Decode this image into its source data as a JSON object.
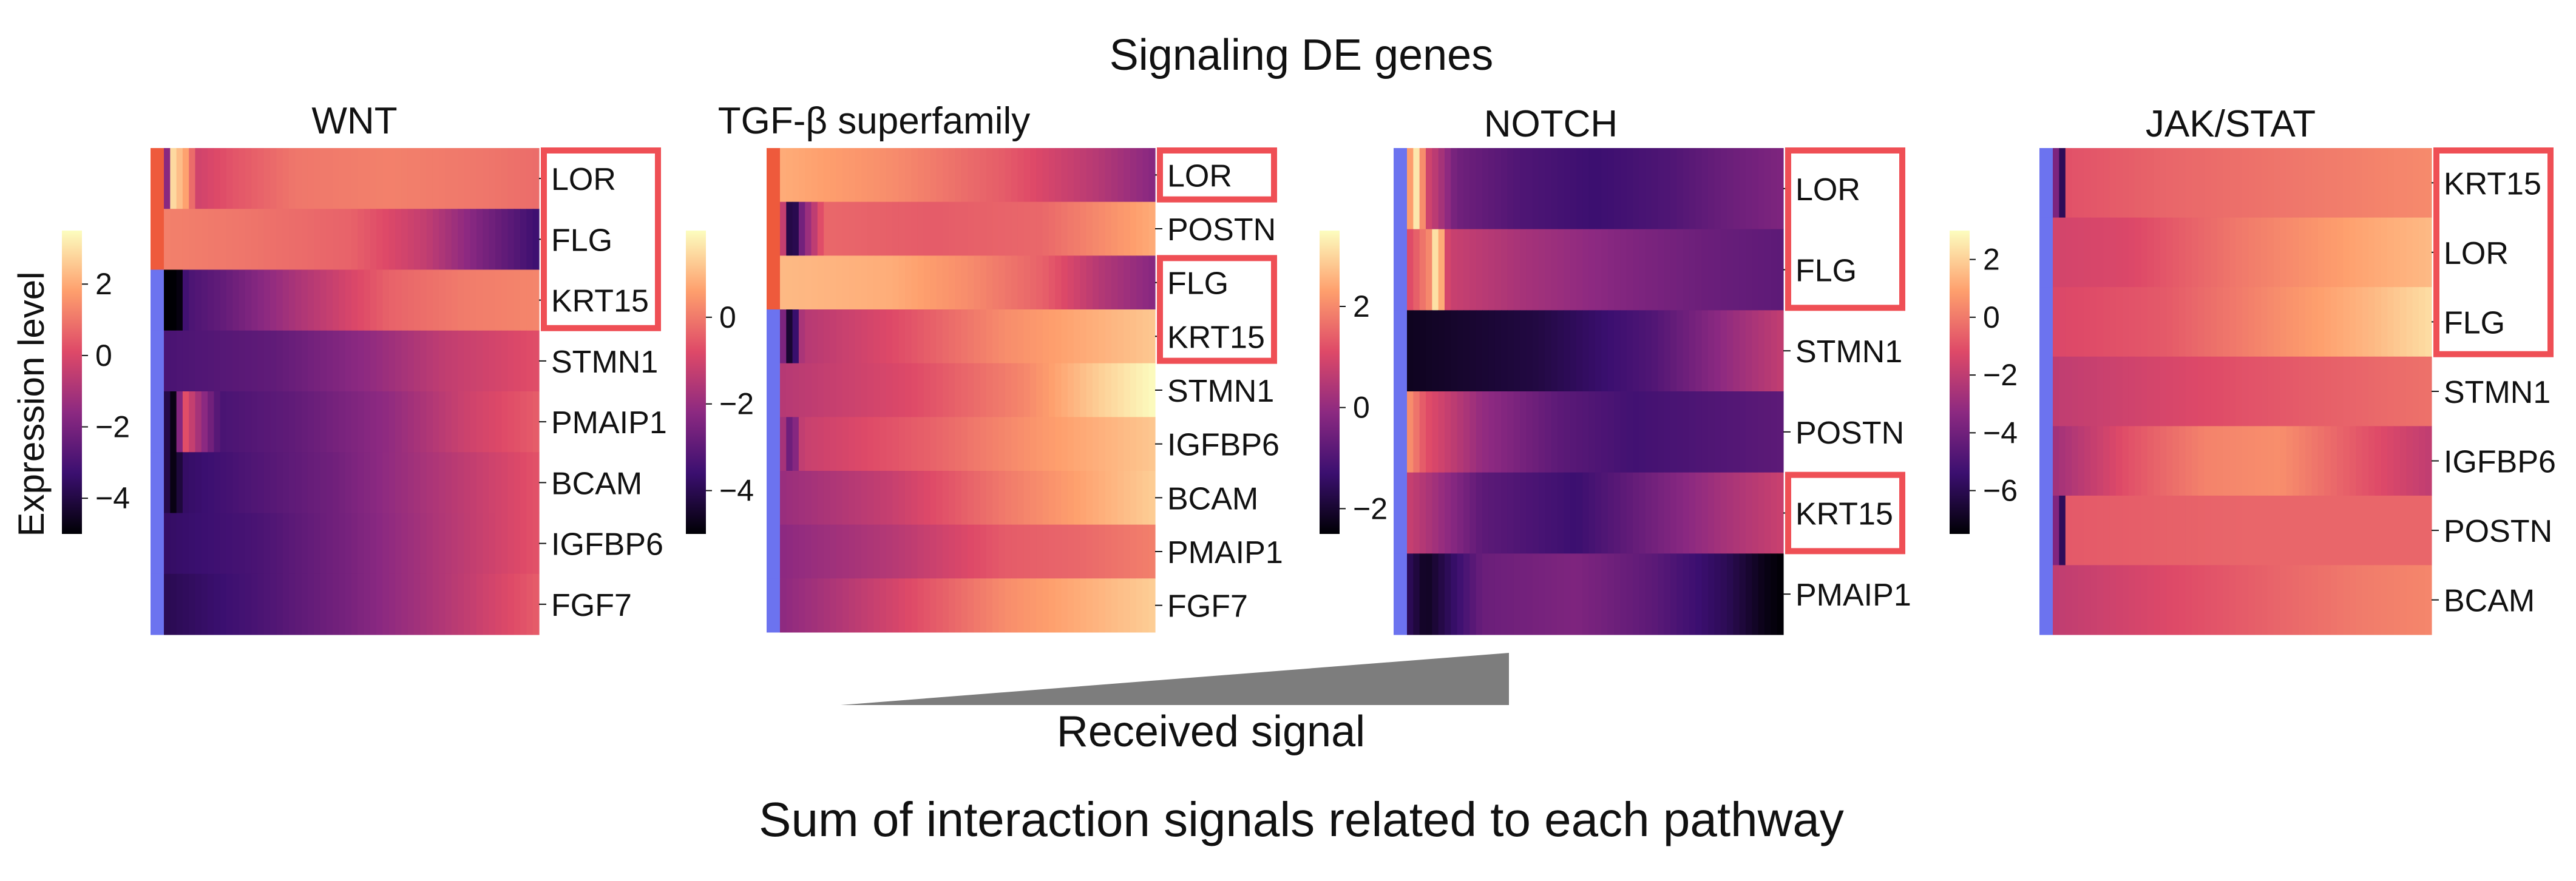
{
  "title": "Signaling DE genes",
  "arrow_label": "Received signal",
  "footer": "Sum of interaction signals related to each pathway",
  "expression_label": "Expression level",
  "palette": [
    "#000004",
    "#3b0f70",
    "#8c2981",
    "#de4968",
    "#fe9f6d",
    "#fcfdbf"
  ],
  "highlight_color": "#ef4f55",
  "cluster_colors": {
    "red": "#ee5a3c",
    "blue": "#6c73ef"
  },
  "arrow_color": "#7d7d7d",
  "chart_data": [
    {
      "type": "heatmap",
      "title": "WNT",
      "genes": [
        "LOR",
        "FLG",
        "KRT15",
        "STMN1",
        "PMAIP1",
        "BCAM",
        "IGFBP6",
        "FGF7"
      ],
      "highlighted": [
        "LOR",
        "FLG",
        "KRT15"
      ],
      "highlight_groups": [
        [
          0,
          2
        ]
      ],
      "row_cluster": [
        "red",
        "red",
        "blue",
        "blue",
        "blue",
        "blue",
        "blue",
        "blue"
      ],
      "colorbar": {
        "range": [
          -5,
          3.5
        ],
        "ticks": [
          2,
          0,
          -2,
          -4
        ],
        "tick_labels": [
          "2",
          "0",
          "−2",
          "−4"
        ]
      },
      "x_label": "Received signal (low → high)",
      "rows": [
        {
          "gene": "LOR",
          "anchors": [
            [
              0,
              -5
            ],
            [
              0.02,
              3.0
            ],
            [
              0.06,
              1.8
            ],
            [
              0.09,
              -0.2
            ],
            [
              0.18,
              0.3
            ],
            [
              0.35,
              1.0
            ],
            [
              0.6,
              1.2
            ],
            [
              0.85,
              1.0
            ],
            [
              1,
              0.8
            ]
          ]
        },
        {
          "gene": "FLG",
          "anchors": [
            [
              0,
              1.2
            ],
            [
              0.2,
              1.0
            ],
            [
              0.5,
              0.6
            ],
            [
              0.7,
              -0.5
            ],
            [
              0.85,
              -2.0
            ],
            [
              1,
              -3.3
            ]
          ]
        },
        {
          "gene": "KRT15",
          "anchors": [
            [
              0,
              -5
            ],
            [
              0.04,
              -5
            ],
            [
              0.06,
              -3.0
            ],
            [
              0.15,
              -2.5
            ],
            [
              0.35,
              -1.0
            ],
            [
              0.6,
              0.6
            ],
            [
              0.8,
              1.1
            ],
            [
              1,
              1.3
            ]
          ]
        },
        {
          "gene": "STMN1",
          "anchors": [
            [
              0,
              -3.0
            ],
            [
              0.3,
              -2.5
            ],
            [
              0.55,
              -1.5
            ],
            [
              0.75,
              -0.5
            ],
            [
              1,
              0.2
            ]
          ]
        },
        {
          "gene": "PMAIP1",
          "anchors": [
            [
              0,
              -3.5
            ],
            [
              0.03,
              -5
            ],
            [
              0.05,
              0.5
            ],
            [
              0.09,
              -1.0
            ],
            [
              0.15,
              -3.0
            ],
            [
              0.35,
              -2.5
            ],
            [
              0.6,
              -1.5
            ],
            [
              0.8,
              -0.3
            ],
            [
              1,
              0.5
            ]
          ]
        },
        {
          "gene": "BCAM",
          "anchors": [
            [
              0,
              -3.5
            ],
            [
              0.03,
              -5
            ],
            [
              0.05,
              -3.5
            ],
            [
              0.2,
              -3.0
            ],
            [
              0.45,
              -2.2
            ],
            [
              0.7,
              -1.0
            ],
            [
              1,
              0.3
            ]
          ]
        },
        {
          "gene": "IGFBP6",
          "anchors": [
            [
              0,
              -3.5
            ],
            [
              0.25,
              -3.0
            ],
            [
              0.5,
              -2.0
            ],
            [
              0.75,
              -0.8
            ],
            [
              1,
              0.3
            ]
          ]
        },
        {
          "gene": "FGF7",
          "anchors": [
            [
              0,
              -3.8
            ],
            [
              0.25,
              -3.0
            ],
            [
              0.5,
              -2.0
            ],
            [
              0.75,
              -0.8
            ],
            [
              1,
              0.5
            ]
          ]
        }
      ]
    },
    {
      "type": "heatmap",
      "title": "TGF-β superfamily",
      "genes": [
        "LOR",
        "POSTN",
        "FLG",
        "KRT15",
        "STMN1",
        "IGFBP6",
        "BCAM",
        "PMAIP1",
        "FGF7"
      ],
      "highlighted": [
        "LOR",
        "FLG",
        "KRT15"
      ],
      "highlight_groups": [
        [
          0,
          0
        ],
        [
          2,
          3
        ]
      ],
      "row_cluster": [
        "red",
        "red",
        "red",
        "blue",
        "blue",
        "blue",
        "blue",
        "blue",
        "blue"
      ],
      "colorbar": {
        "range": [
          -5,
          2
        ],
        "ticks": [
          0,
          -2,
          -4
        ],
        "tick_labels": [
          "0",
          "−2",
          "−4"
        ]
      },
      "x_label": "Received signal (low → high)",
      "rows": [
        {
          "gene": "LOR",
          "anchors": [
            [
              0,
              0.8
            ],
            [
              0.3,
              0.3
            ],
            [
              0.6,
              -0.5
            ],
            [
              0.85,
              -1.5
            ],
            [
              1,
              -2.3
            ]
          ]
        },
        {
          "gene": "POSTN",
          "anchors": [
            [
              0,
              0.2
            ],
            [
              0.03,
              -5
            ],
            [
              0.06,
              -2.5
            ],
            [
              0.12,
              -0.3
            ],
            [
              0.4,
              -0.5
            ],
            [
              0.7,
              -0.3
            ],
            [
              1,
              0.8
            ]
          ]
        },
        {
          "gene": "FLG",
          "anchors": [
            [
              0,
              1.0
            ],
            [
              0.3,
              0.8
            ],
            [
              0.5,
              0.3
            ],
            [
              0.7,
              -0.4
            ],
            [
              0.85,
              -1.5
            ],
            [
              1,
              -2.3
            ]
          ]
        },
        {
          "gene": "KRT15",
          "anchors": [
            [
              0,
              -1.5
            ],
            [
              0.03,
              -5
            ],
            [
              0.06,
              -1.5
            ],
            [
              0.3,
              -0.8
            ],
            [
              0.6,
              0.3
            ],
            [
              1,
              1.2
            ]
          ]
        },
        {
          "gene": "STMN1",
          "anchors": [
            [
              0,
              -1.5
            ],
            [
              0.35,
              -0.8
            ],
            [
              0.65,
              0.2
            ],
            [
              0.85,
              1.3
            ],
            [
              1,
              2.0
            ]
          ]
        },
        {
          "gene": "IGFBP6",
          "anchors": [
            [
              0,
              -1.3
            ],
            [
              0.03,
              -3.0
            ],
            [
              0.06,
              -1.2
            ],
            [
              0.4,
              -0.4
            ],
            [
              0.7,
              0.5
            ],
            [
              1,
              1.2
            ]
          ]
        },
        {
          "gene": "BCAM",
          "anchors": [
            [
              0,
              -2.0
            ],
            [
              0.3,
              -1.2
            ],
            [
              0.6,
              0.0
            ],
            [
              1,
              1.3
            ]
          ]
        },
        {
          "gene": "PMAIP1",
          "anchors": [
            [
              0,
              -2.2
            ],
            [
              0.3,
              -1.5
            ],
            [
              0.6,
              -0.5
            ],
            [
              0.8,
              -0.3
            ],
            [
              1,
              0.1
            ]
          ]
        },
        {
          "gene": "FGF7",
          "anchors": [
            [
              0,
              -2.2
            ],
            [
              0.3,
              -1.0
            ],
            [
              0.6,
              0.3
            ],
            [
              1,
              1.3
            ]
          ]
        }
      ]
    },
    {
      "type": "heatmap",
      "title": "NOTCH",
      "genes": [
        "LOR",
        "FLG",
        "STMN1",
        "POSTN",
        "KRT15",
        "PMAIP1"
      ],
      "highlighted": [
        "LOR",
        "FLG",
        "KRT15"
      ],
      "highlight_groups": [
        [
          0,
          1
        ],
        [
          4,
          4
        ]
      ],
      "row_cluster": [
        "blue",
        "blue",
        "blue",
        "blue",
        "blue",
        "blue"
      ],
      "colorbar": {
        "range": [
          -2.5,
          3.5
        ],
        "ticks": [
          2,
          0,
          -2
        ],
        "tick_labels": [
          "2",
          "0",
          "−2"
        ]
      },
      "x_label": "Received signal (low → high)",
      "rows": [
        {
          "gene": "LOR",
          "anchors": [
            [
              0,
              1.8
            ],
            [
              0.03,
              3.5
            ],
            [
              0.05,
              1.0
            ],
            [
              0.08,
              0.5
            ],
            [
              0.13,
              -0.5
            ],
            [
              0.3,
              -1.0
            ],
            [
              0.5,
              -1.3
            ],
            [
              0.7,
              -1.0
            ],
            [
              0.85,
              -0.6
            ],
            [
              1,
              -0.3
            ]
          ]
        },
        {
          "gene": "FLG",
          "anchors": [
            [
              0,
              1.0
            ],
            [
              0.06,
              2.0
            ],
            [
              0.08,
              3.5
            ],
            [
              0.11,
              0.8
            ],
            [
              0.3,
              0.3
            ],
            [
              0.6,
              -0.3
            ],
            [
              0.8,
              -0.6
            ],
            [
              1,
              -0.8
            ]
          ]
        },
        {
          "gene": "STMN1",
          "anchors": [
            [
              0,
              -2.2
            ],
            [
              0.35,
              -1.8
            ],
            [
              0.65,
              -1.0
            ],
            [
              0.85,
              0.0
            ],
            [
              1,
              0.7
            ]
          ]
        },
        {
          "gene": "POSTN",
          "anchors": [
            [
              0,
              2.2
            ],
            [
              0.05,
              1.2
            ],
            [
              0.2,
              0.0
            ],
            [
              0.4,
              -0.8
            ],
            [
              0.6,
              -1.2
            ],
            [
              0.8,
              -1.0
            ],
            [
              1,
              -0.8
            ]
          ]
        },
        {
          "gene": "KRT15",
          "anchors": [
            [
              0,
              0.8
            ],
            [
              0.2,
              -0.8
            ],
            [
              0.45,
              -1.3
            ],
            [
              0.65,
              -0.5
            ],
            [
              0.85,
              0.3
            ],
            [
              1,
              0.8
            ]
          ]
        },
        {
          "gene": "PMAIP1",
          "anchors": [
            [
              0,
              -1.5
            ],
            [
              0.05,
              -2.2
            ],
            [
              0.2,
              -0.6
            ],
            [
              0.45,
              -0.3
            ],
            [
              0.65,
              -0.8
            ],
            [
              0.85,
              -1.6
            ],
            [
              0.95,
              -2.3
            ],
            [
              1,
              -2.5
            ]
          ]
        }
      ]
    },
    {
      "type": "heatmap",
      "title": "JAK/STAT",
      "genes": [
        "KRT15",
        "LOR",
        "FLG",
        "STMN1",
        "IGFBP6",
        "POSTN",
        "BCAM"
      ],
      "highlighted": [
        "KRT15",
        "LOR",
        "FLG"
      ],
      "highlight_groups": [
        [
          0,
          2
        ]
      ],
      "row_cluster": [
        "blue",
        "blue",
        "blue",
        "blue",
        "blue",
        "blue",
        "blue"
      ],
      "colorbar": {
        "range": [
          -7.5,
          3
        ],
        "ticks": [
          2,
          0,
          -2,
          -4,
          -6
        ],
        "tick_labels": [
          "2",
          "0",
          "−2",
          "−4",
          "−6"
        ]
      },
      "x_label": "Received signal (low → high)",
      "rows": [
        {
          "gene": "KRT15",
          "anchors": [
            [
              0,
              -1.0
            ],
            [
              0.02,
              -7.5
            ],
            [
              0.04,
              -1.0
            ],
            [
              0.3,
              -0.5
            ],
            [
              0.7,
              0.0
            ],
            [
              1,
              0.4
            ]
          ]
        },
        {
          "gene": "LOR",
          "anchors": [
            [
              0,
              -1.5
            ],
            [
              0.2,
              -1.3
            ],
            [
              0.5,
              0.0
            ],
            [
              0.8,
              1.0
            ],
            [
              1,
              1.5
            ]
          ]
        },
        {
          "gene": "FLG",
          "anchors": [
            [
              0,
              -1.3
            ],
            [
              0.3,
              -0.8
            ],
            [
              0.6,
              0.5
            ],
            [
              0.85,
              1.5
            ],
            [
              1,
              2.3
            ]
          ]
        },
        {
          "gene": "STMN1",
          "anchors": [
            [
              0,
              -2.0
            ],
            [
              0.5,
              -1.0
            ],
            [
              1,
              -0.2
            ]
          ]
        },
        {
          "gene": "IGFBP6",
          "anchors": [
            [
              0,
              -2.8
            ],
            [
              0.2,
              -1.0
            ],
            [
              0.4,
              0.2
            ],
            [
              0.6,
              0.5
            ],
            [
              0.8,
              -0.8
            ],
            [
              1,
              -2.0
            ]
          ]
        },
        {
          "gene": "POSTN",
          "anchors": [
            [
              0,
              -0.8
            ],
            [
              0.02,
              -7.5
            ],
            [
              0.04,
              -0.8
            ],
            [
              0.5,
              -0.5
            ],
            [
              1,
              -0.5
            ]
          ]
        },
        {
          "gene": "BCAM",
          "anchors": [
            [
              0,
              -2.0
            ],
            [
              0.4,
              -1.0
            ],
            [
              0.8,
              0.0
            ],
            [
              1,
              0.3
            ]
          ]
        }
      ]
    }
  ]
}
